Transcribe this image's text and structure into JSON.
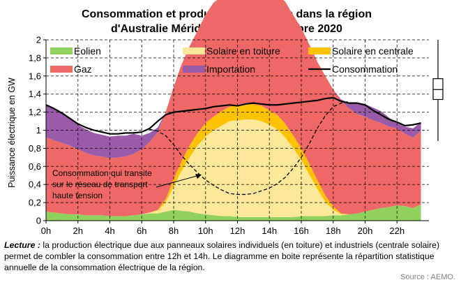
{
  "chart_data": {
    "type": "area",
    "title": [
      "Consommation  et production électrique dans la région",
      "d'Australie Méridionnale, le 11 octobre 2020"
    ],
    "ylabel": "Puissance électrique en GW",
    "xlabel": "",
    "ylim": [
      0,
      2
    ],
    "yticks": [
      "0",
      "0,2",
      "0,4",
      "0,6",
      "0,8",
      "1",
      "1,2",
      "1,4",
      "1,6",
      "1,8",
      "2"
    ],
    "xlim": [
      0,
      24
    ],
    "xticks": [
      "0h",
      "2h",
      "4h",
      "6h",
      "8h",
      "10h",
      "12h",
      "14h",
      "16h",
      "18h",
      "20h",
      "22h"
    ],
    "grid": true,
    "legend_position": "top",
    "x": [
      0,
      0.5,
      1,
      1.5,
      2,
      2.5,
      3,
      3.5,
      4,
      4.5,
      5,
      5.5,
      6,
      6.5,
      7,
      7.5,
      8,
      8.5,
      9,
      9.5,
      10,
      10.5,
      11,
      11.5,
      12,
      12.5,
      13,
      13.5,
      14,
      14.5,
      15,
      15.5,
      16,
      16.5,
      17,
      17.5,
      18,
      18.5,
      19,
      19.5,
      20,
      20.5,
      21,
      21.5,
      22,
      22.5,
      23,
      23.5
    ],
    "series": [
      {
        "name": "Eolien",
        "kind": "stack",
        "color": "#8fd15c",
        "values": [
          0.1,
          0.09,
          0.08,
          0.07,
          0.07,
          0.06,
          0.06,
          0.06,
          0.05,
          0.05,
          0.05,
          0.06,
          0.07,
          0.08,
          0.08,
          0.1,
          0.12,
          0.11,
          0.1,
          0.08,
          0.07,
          0.06,
          0.05,
          0.05,
          0.04,
          0.04,
          0.04,
          0.04,
          0.04,
          0.04,
          0.04,
          0.04,
          0.05,
          0.05,
          0.05,
          0.05,
          0.06,
          0.06,
          0.07,
          0.08,
          0.1,
          0.12,
          0.14,
          0.15,
          0.17,
          0.16,
          0.14,
          0.18
        ]
      },
      {
        "name": "Solaire en toiture",
        "kind": "stack",
        "color": "#fde89a",
        "values": [
          0,
          0,
          0,
          0,
          0,
          0,
          0,
          0,
          0,
          0,
          0,
          0,
          0,
          0.01,
          0.03,
          0.1,
          0.26,
          0.44,
          0.6,
          0.75,
          0.86,
          0.94,
          1.0,
          1.05,
          1.07,
          1.08,
          1.08,
          1.06,
          1.02,
          0.97,
          0.88,
          0.76,
          0.62,
          0.46,
          0.3,
          0.16,
          0.06,
          0.01,
          0,
          0,
          0,
          0,
          0,
          0,
          0,
          0,
          0,
          0
        ]
      },
      {
        "name": "Solaire en centrale",
        "kind": "stack",
        "color": "#fec300",
        "values": [
          0,
          0,
          0,
          0,
          0,
          0,
          0,
          0,
          0,
          0,
          0,
          0,
          0,
          0,
          0.01,
          0.04,
          0.08,
          0.11,
          0.13,
          0.14,
          0.15,
          0.15,
          0.16,
          0.16,
          0.17,
          0.18,
          0.17,
          0.17,
          0.16,
          0.16,
          0.15,
          0.14,
          0.13,
          0.12,
          0.1,
          0.07,
          0.04,
          0.01,
          0,
          0,
          0,
          0,
          0,
          0,
          0,
          0,
          0,
          0
        ]
      },
      {
        "name": "Gaz",
        "kind": "stack",
        "color": "#ef6868",
        "values": [
          0.82,
          0.8,
          0.78,
          0.76,
          0.72,
          0.69,
          0.66,
          0.65,
          0.64,
          0.65,
          0.66,
          0.68,
          0.72,
          0.78,
          0.86,
          0.96,
          1.02,
          1.07,
          1.1,
          1.13,
          1.2,
          1.26,
          1.27,
          1.28,
          1.26,
          1.27,
          1.3,
          1.31,
          1.33,
          1.34,
          1.35,
          1.33,
          1.33,
          1.32,
          1.31,
          1.32,
          1.29,
          1.25,
          1.17,
          1.1,
          1.05,
          0.99,
          0.94,
          0.89,
          0.85,
          0.8,
          0.78,
          0.81
        ]
      },
      {
        "name": "Importation",
        "kind": "stack",
        "color": "#9a5ba8",
        "values": [
          0.36,
          0.35,
          0.33,
          0.3,
          0.27,
          0.26,
          0.25,
          0.24,
          0.24,
          0.24,
          0.23,
          0.22,
          0.15,
          0.1,
          0.05,
          0,
          0,
          0,
          0,
          0,
          0,
          0,
          0,
          0,
          0,
          0,
          0,
          0,
          0,
          0,
          0,
          0,
          0,
          0,
          0,
          0,
          0,
          0.01,
          0.06,
          0.12,
          0.14,
          0.14,
          0.13,
          0.1,
          0.06,
          0.08,
          0.1,
          0.1
        ]
      },
      {
        "name": "Consommation",
        "kind": "line",
        "color": "#000000",
        "values": [
          1.28,
          1.24,
          1.19,
          1.13,
          1.07,
          1.03,
          1.0,
          0.98,
          0.96,
          0.96,
          0.97,
          0.97,
          0.98,
          1.02,
          1.1,
          1.17,
          1.2,
          1.21,
          1.22,
          1.23,
          1.24,
          1.26,
          1.27,
          1.28,
          1.27,
          1.29,
          1.3,
          1.29,
          1.28,
          1.28,
          1.29,
          1.3,
          1.31,
          1.32,
          1.33,
          1.35,
          1.36,
          1.32,
          1.3,
          1.3,
          1.28,
          1.22,
          1.17,
          1.12,
          1.09,
          1.05,
          1.06,
          1.08
        ]
      },
      {
        "name": "Consommation qui transite sur le réseau de transport haute tension",
        "kind": "dashed",
        "color": "#000000",
        "x": [
          6.5,
          7,
          7.5,
          8,
          8.5,
          9,
          9.5,
          10,
          10.5,
          11,
          11.5,
          12,
          12.5,
          13,
          13.5,
          14,
          14.5,
          15,
          15.5,
          16,
          16.5,
          17,
          17.5,
          18,
          18.5,
          19
        ],
        "values": [
          1.01,
          0.99,
          0.94,
          0.84,
          0.72,
          0.62,
          0.53,
          0.45,
          0.39,
          0.34,
          0.3,
          0.29,
          0.29,
          0.3,
          0.33,
          0.36,
          0.41,
          0.48,
          0.58,
          0.7,
          0.85,
          1.02,
          1.16,
          1.26,
          1.3,
          1.32
        ]
      }
    ],
    "annotation": [
      "Consommation qui transite",
      "sur le réseau de transport",
      "haute tension"
    ],
    "boxplot": {
      "min": 0.88,
      "q1": 1.34,
      "median": 1.45,
      "q3": 1.57,
      "max": 2.0
    }
  },
  "reading": {
    "label": "Lecture :",
    "text": " la production électrique due aux panneaux solaires individuels (en toiture) et industriels (centrale solaire) permet de combler la consommation entre 12h et 14h. Le diagramme en boite représente la répartition statistique annuelle de la consommation électrique de la région."
  },
  "source": "Source : AEMO."
}
